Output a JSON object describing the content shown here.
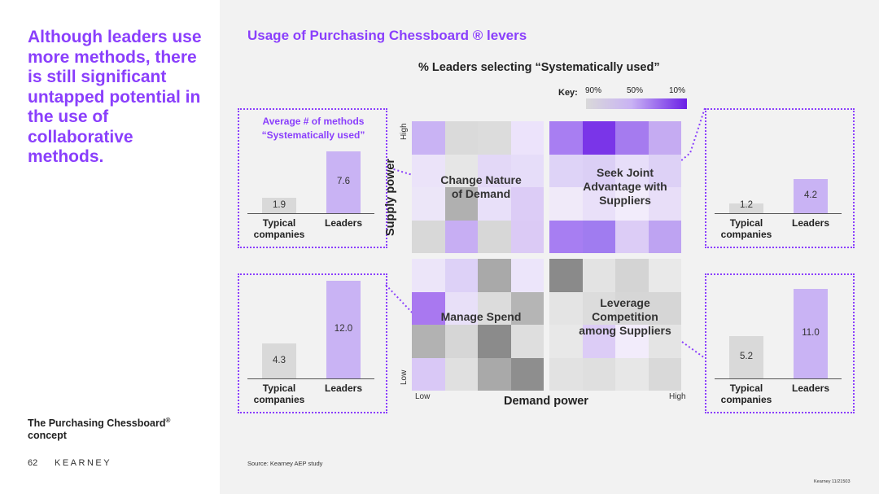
{
  "headline": "Although leaders use more methods, there is still significant untapped potential in the use of collaborative methods.",
  "concept": {
    "text": "The Purchasing Chessboard",
    "sup": "®",
    "line2": "concept"
  },
  "page_number": "62",
  "brand": "KEARNEY",
  "source": "Source: Kearney AEP study",
  "footer": "Kearney 11/21503",
  "colors": {
    "accent": "#8a3ffc",
    "typical_bar": "#d9d9d9",
    "leaders_bar": "#c9b3f4"
  },
  "chart_data": [
    {
      "type": "heatmap",
      "title": "Usage of Purchasing Chessboard ® levers",
      "subtitle": "% Leaders selecting “Systematically used”",
      "key": {
        "label": "Key:",
        "ticks": [
          "90%",
          "50%",
          "10%"
        ]
      },
      "xlabel": "Demand power",
      "ylabel": "Supply power",
      "x_ticks": {
        "low": "Low",
        "high": "High"
      },
      "y_ticks": {
        "low": "Low",
        "high": "High"
      },
      "grid": [
        [
          "#c9b3f4",
          "#dadada",
          "#dcdcdc",
          "#ece3fb",
          "#a87ef2",
          "#7a35e8",
          "#a57bef",
          "#c5abf2"
        ],
        [
          "#ebe3f9",
          "#e6e6e6",
          "#e3d8f7",
          "#e6ddf9",
          "#ded3f7",
          "#dbcff5",
          "#e7def9",
          "#ddd1f6"
        ],
        [
          "#ece6f8",
          "#b0b0b0",
          "#e8e0f9",
          "#dcccf6",
          "#f0eaf9",
          "#e9e0f9",
          "#f2ecfb",
          "#e8def8"
        ],
        [
          "#d8d8d8",
          "#c7aef3",
          "#d7d7d7",
          "#dbcaf5",
          "#a77ef2",
          "#a07cf0",
          "#dcccf6",
          "#bea3f2"
        ],
        [
          "#ece5f9",
          "#ddd1f7",
          "#a9a9a9",
          "#ece5fa",
          "#8a8a8a",
          "#e3e3e3",
          "#d4d4d4",
          "#e9e9e9"
        ],
        [
          "#a978f0",
          "#e8e0f8",
          "#dcdcdc",
          "#b5b5b5",
          "#e4e4e4",
          "#dcdcdc",
          "#d6d6d6",
          "#d6d6d6"
        ],
        [
          "#b2b2b2",
          "#d6d6d6",
          "#8b8b8b",
          "#dedede",
          "#e8e8e8",
          "#dcccf6",
          "#f2ecfb",
          "#e4e4e4"
        ],
        [
          "#d9c8f6",
          "#e0e0e0",
          "#a9a9a9",
          "#8e8e8e",
          "#e2e2e2",
          "#dfdfdf",
          "#e7e7e7",
          "#d9d9d9"
        ]
      ],
      "quadrants": [
        {
          "name": "Change Nature of Demand",
          "lines": [
            "Change Nature",
            "of Demand"
          ]
        },
        {
          "name": "Seek Joint Advantage with Suppliers",
          "lines": [
            "Seek Joint",
            "Advantage with",
            "Suppliers"
          ]
        },
        {
          "name": "Manage Spend",
          "lines": [
            "Manage Spend"
          ]
        },
        {
          "name": "Leverage Competition among Suppliers",
          "lines": [
            "Leverage",
            "Competition",
            "among Suppliers"
          ]
        }
      ]
    },
    {
      "type": "bar",
      "title": "Average # of methods “Systematically used”",
      "quadrant": "Change Nature of Demand",
      "categories": [
        "Typical companies",
        "Leaders"
      ],
      "values": [
        1.9,
        7.6
      ],
      "labels": [
        "1.9",
        "7.6"
      ],
      "ylim": [
        0,
        13
      ]
    },
    {
      "type": "bar",
      "quadrant": "Seek Joint Advantage with Suppliers",
      "categories": [
        "Typical companies",
        "Leaders"
      ],
      "values": [
        1.2,
        4.2
      ],
      "labels": [
        "1.2",
        "4.2"
      ],
      "ylim": [
        0,
        13
      ]
    },
    {
      "type": "bar",
      "quadrant": "Manage Spend",
      "categories": [
        "Typical companies",
        "Leaders"
      ],
      "values": [
        4.3,
        12.0
      ],
      "labels": [
        "4.3",
        "12.0"
      ],
      "ylim": [
        0,
        13
      ]
    },
    {
      "type": "bar",
      "quadrant": "Leverage Competition among Suppliers",
      "categories": [
        "Typical companies",
        "Leaders"
      ],
      "values": [
        5.2,
        11.0
      ],
      "labels": [
        "5.2",
        "11.0"
      ],
      "ylim": [
        0,
        13
      ]
    }
  ],
  "bar_category_labels": {
    "typical_line1": "Typical",
    "typical_line2": "companies",
    "leaders": "Leaders"
  }
}
